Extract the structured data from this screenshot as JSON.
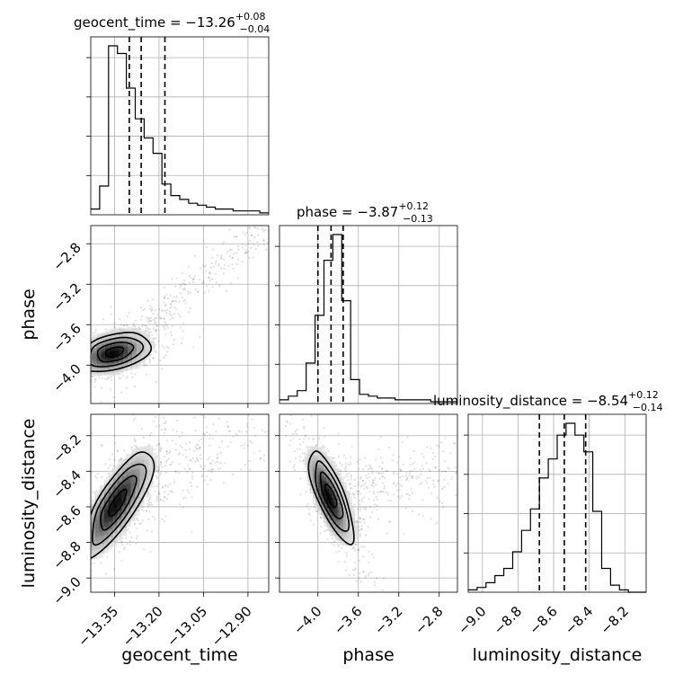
{
  "chart_data": {
    "type": "corner",
    "parameters": [
      "geocent_time",
      "phase",
      "luminosity_distance"
    ],
    "titles": [
      {
        "param": "geocent_time",
        "median": "−13.26",
        "plus": "+0.08",
        "minus": "−0.04"
      },
      {
        "param": "phase",
        "median": "−3.87",
        "plus": "+0.12",
        "minus": "−0.13"
      },
      {
        "param": "luminosity_distance",
        "median": "−8.54",
        "plus": "+0.12",
        "minus": "−0.14"
      }
    ],
    "axes": {
      "geocent_time": {
        "range": [
          -13.43,
          -12.83
        ],
        "ticks": [
          -13.35,
          -13.2,
          -13.05,
          -12.9
        ],
        "tick_labels": [
          "−13.35",
          "−13.20",
          "−13.05",
          "−12.90"
        ]
      },
      "phase": {
        "range": [
          -4.38,
          -2.62
        ],
        "ticks": [
          -4.0,
          -3.6,
          -3.2,
          -2.8
        ],
        "tick_labels": [
          "−4.0",
          "−3.6",
          "−3.2",
          "−2.8"
        ]
      },
      "luminosity_distance": {
        "range": [
          -9.08,
          -8.08
        ],
        "ticks": [
          -9.0,
          -8.8,
          -8.6,
          -8.4,
          -8.2
        ],
        "tick_labels": [
          "−9.0",
          "−8.8",
          "−8.6",
          "−8.4",
          "−8.2"
        ]
      }
    },
    "quantiles": {
      "geocent_time": [
        -13.3,
        -13.26,
        -13.18
      ],
      "phase": [
        -4.0,
        -3.87,
        -3.75
      ],
      "luminosity_distance": [
        -8.68,
        -8.54,
        -8.42
      ]
    },
    "histograms": {
      "geocent_time": {
        "edges_start": -13.43,
        "bin_width": 0.03,
        "counts": [
          3,
          15,
          88,
          84,
          66,
          50,
          40,
          32,
          16,
          10,
          8,
          6,
          5,
          4,
          3,
          3,
          2,
          2,
          2,
          1
        ]
      },
      "phase": {
        "edges_start": -4.38,
        "bin_width": 0.088,
        "counts": [
          2,
          4,
          7,
          22,
          48,
          78,
          92,
          56,
          13,
          5,
          4,
          3,
          3,
          2,
          2,
          2,
          2,
          1,
          1,
          1
        ]
      },
      "luminosity_distance": {
        "edges_start": -9.08,
        "bin_width": 0.05,
        "counts": [
          1,
          2,
          4,
          7,
          10,
          17,
          26,
          35,
          48,
          56,
          66,
          71,
          66,
          59,
          34,
          10,
          3,
          1,
          0,
          0
        ]
      }
    },
    "kde_2d": {
      "geocent_time_vs_phase": {
        "center": [
          -13.35,
          -3.87
        ],
        "sigma": [
          0.06,
          0.1
        ],
        "rho": 0.35
      },
      "geocent_time_vs_luminosity_distance": {
        "center": [
          -13.34,
          -8.58
        ],
        "sigma": [
          0.06,
          0.15
        ],
        "rho": 0.78
      },
      "phase_vs_luminosity_distance": {
        "center": [
          -3.87,
          -8.54
        ],
        "sigma": [
          0.11,
          0.13
        ],
        "rho": -0.75
      }
    },
    "contour_levels_sigma": [
      0.5,
      1.0,
      1.5,
      2.0
    ],
    "grid": true
  }
}
